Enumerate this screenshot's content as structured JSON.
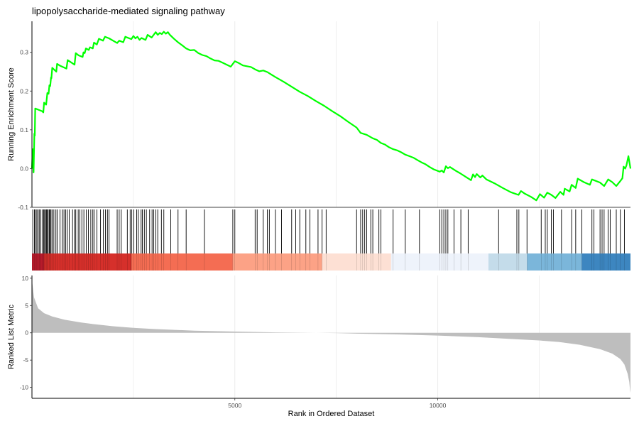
{
  "chart_data": {
    "type": "line",
    "title": "lipopolysaccharide-mediated signaling pathway",
    "xlabel": "Rank in Ordered Dataset",
    "xlim": [
      0,
      14750
    ],
    "grid": "vertical major and minor gridlines",
    "colors": {
      "running_score": "#00ff00",
      "hit_lines": "#000000",
      "metric_fill": "#bebebe",
      "axis": "#000000",
      "grid": "#ebebeb",
      "rank_bands": [
        "#b2182b",
        "#d6302b",
        "#f46d53",
        "#fca286",
        "#fde0d4",
        "#eef3fb",
        "#c4dcea",
        "#7bb6da",
        "#3d86c0"
      ]
    },
    "panels": [
      {
        "name": "running-enrichment-score",
        "ylabel": "Running Enrichment Score",
        "ylim": [
          -0.1,
          0.38
        ],
        "y_ticks": [
          -0.1,
          0.0,
          0.1,
          0.2,
          0.3
        ],
        "y_tick_labels": [
          "-0.1",
          "0.0",
          "0.1",
          "0.2",
          "0.3"
        ]
      },
      {
        "name": "ranked-list-metric",
        "ylabel": "Ranked List Metric",
        "ylim": [
          -12,
          10.5
        ],
        "y_ticks": [
          10,
          5,
          0,
          -5,
          -10
        ],
        "y_tick_labels": [
          "10",
          "5",
          "0",
          "-5",
          "-10"
        ]
      }
    ],
    "x_ticks": [
      5000,
      10000
    ],
    "x_tick_labels": [
      "5000",
      "10000"
    ],
    "series": [
      {
        "type": "line",
        "points": [
          [
            0,
            0.0
          ],
          [
            20,
            0.05
          ],
          [
            40,
            -0.01
          ],
          [
            60,
            0.09
          ],
          [
            70,
            0.085
          ],
          [
            80,
            0.155
          ],
          [
            150,
            0.152
          ],
          [
            250,
            0.148
          ],
          [
            280,
            0.145
          ],
          [
            300,
            0.17
          ],
          [
            350,
            0.165
          ],
          [
            380,
            0.195
          ],
          [
            410,
            0.193
          ],
          [
            430,
            0.215
          ],
          [
            450,
            0.213
          ],
          [
            470,
            0.235
          ],
          [
            480,
            0.233
          ],
          [
            500,
            0.26
          ],
          [
            550,
            0.255
          ],
          [
            600,
            0.25
          ],
          [
            620,
            0.27
          ],
          [
            700,
            0.265
          ],
          [
            850,
            0.258
          ],
          [
            880,
            0.28
          ],
          [
            950,
            0.275
          ],
          [
            1050,
            0.268
          ],
          [
            1080,
            0.298
          ],
          [
            1150,
            0.292
          ],
          [
            1250,
            0.288
          ],
          [
            1270,
            0.3
          ],
          [
            1300,
            0.298
          ],
          [
            1330,
            0.31
          ],
          [
            1400,
            0.306
          ],
          [
            1430,
            0.313
          ],
          [
            1500,
            0.31
          ],
          [
            1530,
            0.325
          ],
          [
            1600,
            0.32
          ],
          [
            1650,
            0.335
          ],
          [
            1750,
            0.33
          ],
          [
            1800,
            0.34
          ],
          [
            1900,
            0.336
          ],
          [
            2000,
            0.33
          ],
          [
            2100,
            0.324
          ],
          [
            2150,
            0.33
          ],
          [
            2250,
            0.326
          ],
          [
            2300,
            0.34
          ],
          [
            2450,
            0.334
          ],
          [
            2500,
            0.342
          ],
          [
            2550,
            0.336
          ],
          [
            2600,
            0.34
          ],
          [
            2650,
            0.332
          ],
          [
            2700,
            0.337
          ],
          [
            2800,
            0.332
          ],
          [
            2850,
            0.345
          ],
          [
            2950,
            0.338
          ],
          [
            3050,
            0.352
          ],
          [
            3100,
            0.345
          ],
          [
            3150,
            0.35
          ],
          [
            3200,
            0.347
          ],
          [
            3250,
            0.353
          ],
          [
            3300,
            0.348
          ],
          [
            3350,
            0.352
          ],
          [
            3400,
            0.345
          ],
          [
            3500,
            0.335
          ],
          [
            3600,
            0.326
          ],
          [
            3700,
            0.318
          ],
          [
            3800,
            0.31
          ],
          [
            3900,
            0.305
          ],
          [
            4000,
            0.306
          ],
          [
            4100,
            0.298
          ],
          [
            4200,
            0.293
          ],
          [
            4300,
            0.29
          ],
          [
            4400,
            0.284
          ],
          [
            4500,
            0.279
          ],
          [
            4600,
            0.278
          ],
          [
            4700,
            0.273
          ],
          [
            4800,
            0.268
          ],
          [
            4900,
            0.263
          ],
          [
            5000,
            0.277
          ],
          [
            5100,
            0.272
          ],
          [
            5200,
            0.266
          ],
          [
            5400,
            0.262
          ],
          [
            5500,
            0.256
          ],
          [
            5600,
            0.251
          ],
          [
            5700,
            0.253
          ],
          [
            5800,
            0.249
          ],
          [
            6000,
            0.236
          ],
          [
            6200,
            0.224
          ],
          [
            6400,
            0.211
          ],
          [
            6600,
            0.198
          ],
          [
            6800,
            0.187
          ],
          [
            7000,
            0.174
          ],
          [
            7200,
            0.162
          ],
          [
            7400,
            0.148
          ],
          [
            7600,
            0.135
          ],
          [
            7800,
            0.12
          ],
          [
            8000,
            0.106
          ],
          [
            8100,
            0.092
          ],
          [
            8250,
            0.087
          ],
          [
            8400,
            0.078
          ],
          [
            8500,
            0.074
          ],
          [
            8600,
            0.066
          ],
          [
            8700,
            0.062
          ],
          [
            8800,
            0.055
          ],
          [
            8900,
            0.05
          ],
          [
            9000,
            0.047
          ],
          [
            9100,
            0.042
          ],
          [
            9200,
            0.036
          ],
          [
            9300,
            0.032
          ],
          [
            9400,
            0.028
          ],
          [
            9500,
            0.022
          ],
          [
            9600,
            0.016
          ],
          [
            9700,
            0.011
          ],
          [
            9800,
            0.004
          ],
          [
            9900,
            -0.002
          ],
          [
            10050,
            -0.008
          ],
          [
            10100,
            -0.005
          ],
          [
            10150,
            -0.01
          ],
          [
            10200,
            0.006
          ],
          [
            10250,
            0.001
          ],
          [
            10300,
            0.004
          ],
          [
            10450,
            -0.006
          ],
          [
            10550,
            -0.012
          ],
          [
            10700,
            -0.022
          ],
          [
            10820,
            -0.03
          ],
          [
            10870,
            -0.015
          ],
          [
            10920,
            -0.022
          ],
          [
            10960,
            -0.014
          ],
          [
            11050,
            -0.023
          ],
          [
            11100,
            -0.018
          ],
          [
            11200,
            -0.028
          ],
          [
            11400,
            -0.038
          ],
          [
            11600,
            -0.05
          ],
          [
            11800,
            -0.061
          ],
          [
            11990,
            -0.068
          ],
          [
            12050,
            -0.058
          ],
          [
            12150,
            -0.065
          ],
          [
            12300,
            -0.073
          ],
          [
            12430,
            -0.082
          ],
          [
            12520,
            -0.066
          ],
          [
            12620,
            -0.075
          ],
          [
            12700,
            -0.062
          ],
          [
            12800,
            -0.068
          ],
          [
            12900,
            -0.076
          ],
          [
            13020,
            -0.06
          ],
          [
            13100,
            -0.068
          ],
          [
            13130,
            -0.052
          ],
          [
            13250,
            -0.059
          ],
          [
            13300,
            -0.042
          ],
          [
            13400,
            -0.05
          ],
          [
            13450,
            -0.026
          ],
          [
            13600,
            -0.035
          ],
          [
            13750,
            -0.042
          ],
          [
            13800,
            -0.028
          ],
          [
            14000,
            -0.036
          ],
          [
            14100,
            -0.045
          ],
          [
            14200,
            -0.028
          ],
          [
            14300,
            -0.035
          ],
          [
            14400,
            -0.045
          ],
          [
            14500,
            -0.032
          ],
          [
            14550,
            -0.025
          ],
          [
            14580,
            0.005
          ],
          [
            14620,
            0.0
          ],
          [
            14650,
            0.008
          ],
          [
            14700,
            0.032
          ],
          [
            14750,
            0.0
          ]
        ]
      },
      {
        "type": "hits",
        "positions": [
          20,
          60,
          80,
          120,
          150,
          180,
          220,
          260,
          290,
          310,
          340,
          360,
          380,
          400,
          430,
          450,
          470,
          500,
          540,
          590,
          620,
          690,
          750,
          790,
          830,
          870,
          920,
          1000,
          1050,
          1080,
          1140,
          1180,
          1230,
          1280,
          1340,
          1390,
          1450,
          1500,
          1530,
          1600,
          1690,
          1760,
          1810,
          1860,
          1900,
          2100,
          2150,
          2200,
          2350,
          2420,
          2460,
          2510,
          2580,
          2620,
          2690,
          2720,
          2770,
          2820,
          2900,
          2960,
          3000,
          3050,
          3100,
          3190,
          3250,
          3420,
          3600,
          3800,
          4250,
          4950,
          5000,
          5500,
          5550,
          5700,
          5800,
          5850,
          6000,
          6150,
          6400,
          6500,
          6600,
          6750,
          6850,
          7050,
          7150,
          7250,
          8000,
          8100,
          8150,
          8200,
          8250,
          8350,
          8400,
          8550,
          8600,
          8900,
          9200,
          9550,
          10050,
          10100,
          10150,
          10200,
          10250,
          10400,
          10570,
          10750,
          11500,
          11950,
          12000,
          12200,
          12550,
          12650,
          12700,
          12800,
          12850,
          13050,
          13300,
          13400,
          13550,
          13800,
          13850,
          14000,
          14050,
          14100,
          14200,
          14250,
          14400,
          14500,
          14600
        ]
      },
      {
        "type": "area",
        "points": [
          [
            0,
            10.5
          ],
          [
            10,
            9.0
          ],
          [
            50,
            6.5
          ],
          [
            150,
            4.5
          ],
          [
            300,
            3.6
          ],
          [
            500,
            3.0
          ],
          [
            800,
            2.4
          ],
          [
            1200,
            1.9
          ],
          [
            1500,
            1.6
          ],
          [
            2000,
            1.2
          ],
          [
            2500,
            0.9
          ],
          [
            3000,
            0.7
          ],
          [
            4000,
            0.4
          ],
          [
            5000,
            0.22
          ],
          [
            6000,
            0.08
          ],
          [
            7000,
            0.0
          ],
          [
            7500,
            -0.05
          ],
          [
            8000,
            -0.15
          ],
          [
            9000,
            -0.3
          ],
          [
            10000,
            -0.5
          ],
          [
            11000,
            -0.8
          ],
          [
            12000,
            -1.2
          ],
          [
            12500,
            -1.4
          ],
          [
            13000,
            -1.7
          ],
          [
            13500,
            -2.2
          ],
          [
            14000,
            -3.0
          ],
          [
            14300,
            -3.8
          ],
          [
            14500,
            -4.8
          ],
          [
            14600,
            -5.8
          ],
          [
            14680,
            -7.5
          ],
          [
            14720,
            -9.0
          ],
          [
            14740,
            -10.5
          ],
          [
            14750,
            -11.0
          ]
        ]
      }
    ],
    "rank_bands": [
      {
        "from": 0,
        "to": 2450,
        "color_index": 1
      },
      {
        "from": 2450,
        "to": 4950,
        "color_index": 2
      },
      {
        "from": 4950,
        "to": 7150,
        "color_index": 3
      },
      {
        "from": 7150,
        "to": 8850,
        "color_index": 4
      },
      {
        "from": 8850,
        "to": 11250,
        "color_index": 5
      },
      {
        "from": 11250,
        "to": 12200,
        "color_index": 6
      },
      {
        "from": 12200,
        "to": 13550,
        "color_index": 7
      },
      {
        "from": 13550,
        "to": 14750,
        "color_index": 8
      }
    ]
  }
}
